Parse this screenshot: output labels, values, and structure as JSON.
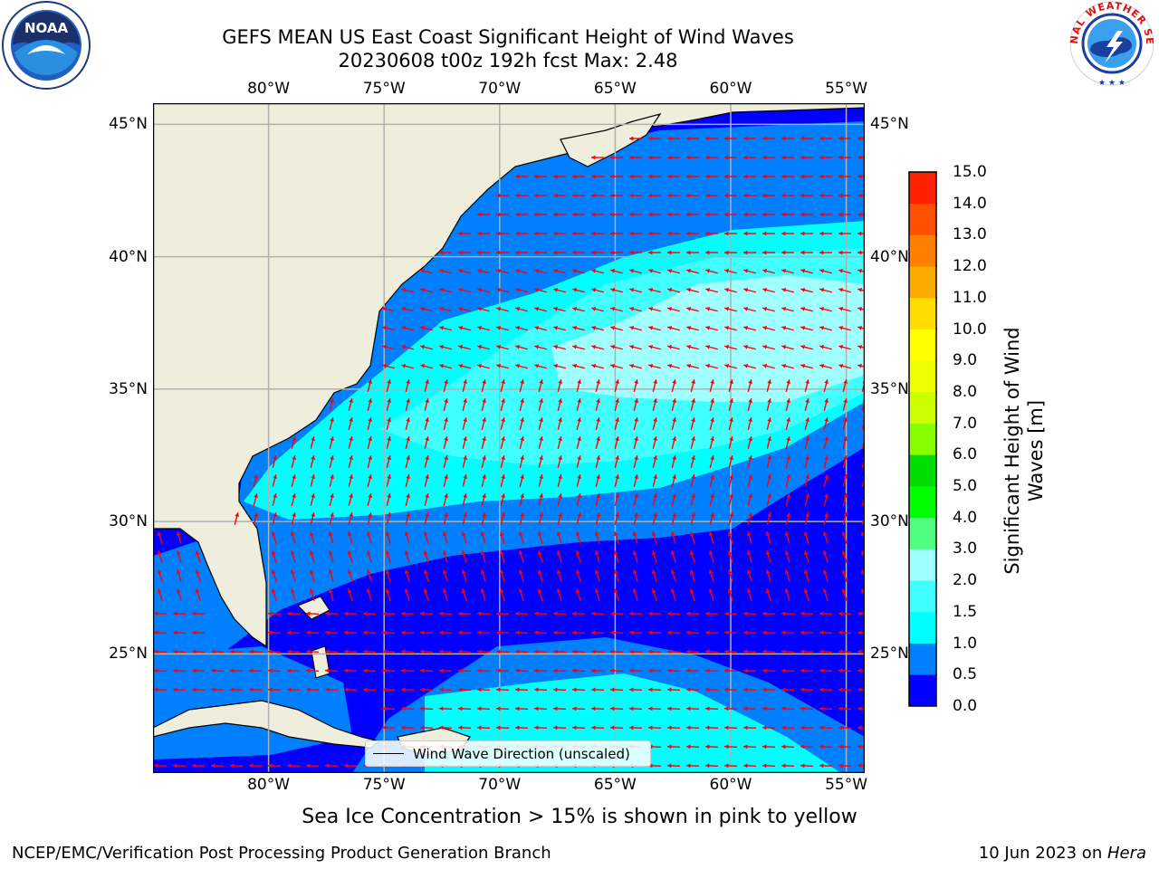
{
  "header": {
    "title_line1": "GEFS MEAN US East Coast Significant Height of Wind Waves",
    "title_line2": "20230608 t00z 192h fcst   Max: 2.48"
  },
  "logos": {
    "left_icon": "noaa-logo-icon",
    "left_text": "NOAA",
    "left_ring_text": "NATIONAL OCEANIC AND ATMOSPHERIC ADMINISTRATION · U.S. DEPARTMENT OF COMMERCE",
    "right_icon": "national-weather-service-logo-icon",
    "right_ring_text": "NATIONAL WEATHER SERVICE"
  },
  "map": {
    "lon_labels": [
      "80°W",
      "75°W",
      "70°W",
      "65°W",
      "60°W",
      "55°W"
    ],
    "lat_labels": [
      "45°N",
      "40°N",
      "35°N",
      "30°N",
      "25°N"
    ],
    "extent": {
      "lon_min": -85,
      "lon_max": -54.2,
      "lat_min": 20.5,
      "lat_max": 45.8
    },
    "legend_label": "Wind Wave Direction (unscaled)",
    "arrow_color": "#ff0000",
    "land_color": "#efeedd",
    "grid_color": "#b0b0b0"
  },
  "colorbar": {
    "label_line1": "Significant Height of Wind",
    "label_line2": "Waves [m]",
    "ticks": [
      "15.0",
      "14.0",
      "13.0",
      "12.0",
      "11.0",
      "10.0",
      "9.0",
      "8.0",
      "7.0",
      "6.0",
      "5.0",
      "4.0",
      "3.0",
      "2.0",
      "1.5",
      "1.0",
      "0.5",
      "0.0"
    ],
    "colors_bottom_to_top": [
      "#0000ff",
      "#0080ff",
      "#00ffff",
      "#40ffff",
      "#a0ffff",
      "#50ff80",
      "#00ff00",
      "#00dd00",
      "#88ff00",
      "#ccff00",
      "#eeff00",
      "#ffff00",
      "#ffdd00",
      "#ffaa00",
      "#ff8000",
      "#ff5000",
      "#ff2000"
    ]
  },
  "note": "Sea Ice Concentration > 15% is shown in pink to yellow",
  "footer": {
    "left": "NCEP/EMC/Verification Post Processing Product Generation Branch",
    "right_date": "10 Jun 2023 on ",
    "right_machine": "Hera"
  }
}
